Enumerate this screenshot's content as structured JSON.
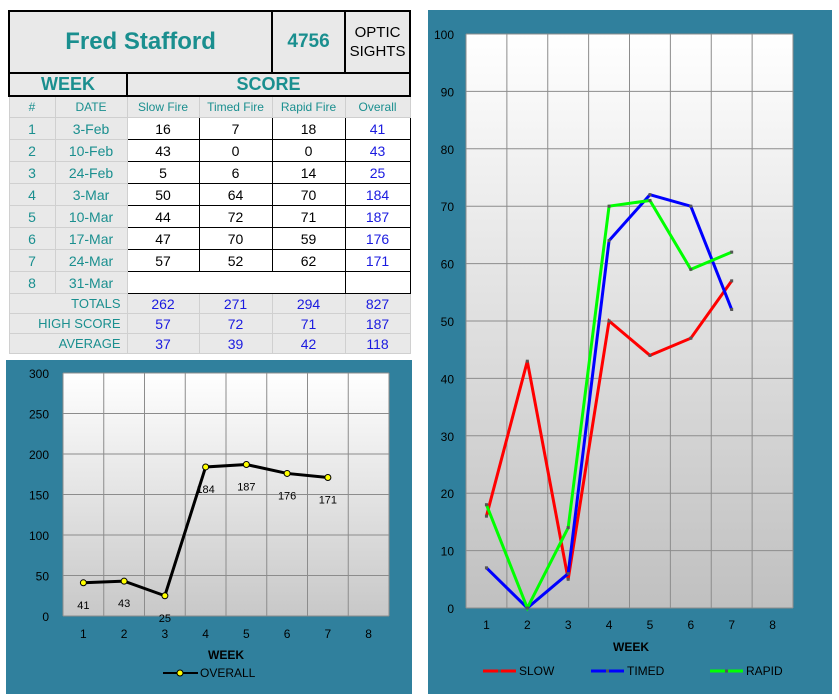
{
  "header": {
    "name": "Fred Stafford",
    "id": "4756",
    "category": "OPTIC\nSIGHTS"
  },
  "labels": {
    "week": "WEEK",
    "score": "SCORE",
    "num": "#",
    "date": "DATE",
    "slow": "Slow Fire",
    "timed": "Timed Fire",
    "rapid": "Rapid Fire",
    "overall": "Overall"
  },
  "rows": [
    {
      "num": "1",
      "date": "3-Feb",
      "slow": "16",
      "timed": "7",
      "rapid": "18",
      "overall": "41"
    },
    {
      "num": "2",
      "date": "10-Feb",
      "slow": "43",
      "timed": "0",
      "rapid": "0",
      "overall": "43"
    },
    {
      "num": "3",
      "date": "24-Feb",
      "slow": "5",
      "timed": "6",
      "rapid": "14",
      "overall": "25"
    },
    {
      "num": "4",
      "date": "3-Mar",
      "slow": "50",
      "timed": "64",
      "rapid": "70",
      "overall": "184"
    },
    {
      "num": "5",
      "date": "10-Mar",
      "slow": "44",
      "timed": "72",
      "rapid": "71",
      "overall": "187"
    },
    {
      "num": "6",
      "date": "17-Mar",
      "slow": "47",
      "timed": "70",
      "rapid": "59",
      "overall": "176"
    },
    {
      "num": "7",
      "date": "24-Mar",
      "slow": "57",
      "timed": "52",
      "rapid": "62",
      "overall": "171"
    },
    {
      "num": "8",
      "date": "31-Mar",
      "slow": "",
      "timed": "",
      "rapid": "",
      "overall": ""
    }
  ],
  "totals": {
    "totals": {
      "label": "TOTALS",
      "slow": "262",
      "timed": "271",
      "rapid": "294",
      "overall": "827"
    },
    "high": {
      "label": "HIGH SCORE",
      "slow": "57",
      "timed": "72",
      "rapid": "71",
      "overall": "187"
    },
    "avg": {
      "label": "AVERAGE",
      "slow": "37",
      "timed": "39",
      "rapid": "42",
      "overall": "118"
    }
  },
  "colors": {
    "panel": "#30809d",
    "accent": "#1a8f8f",
    "overall_value": "#1a1ae0",
    "slow": "#ff0000",
    "timed": "#0000ff",
    "rapid": "#00ff00",
    "overall_line": "#000000",
    "overall_marker": "#ffff00"
  },
  "chart_data": [
    {
      "type": "line",
      "x": [
        1,
        2,
        3,
        4,
        5,
        6,
        7
      ],
      "x_ticks": [
        1,
        2,
        3,
        4,
        5,
        6,
        7,
        8
      ],
      "series": [
        {
          "name": "OVERALL",
          "values": [
            41,
            43,
            25,
            184,
            187,
            176,
            171
          ]
        }
      ],
      "data_labels": [
        "41",
        "43",
        "25",
        "184",
        "187",
        "176",
        "171"
      ],
      "xlabel": "WEEK",
      "ylabel": "",
      "xlim": [
        0.5,
        8.5
      ],
      "ylim": [
        0,
        300
      ],
      "y_ticks": [
        0,
        50,
        100,
        150,
        200,
        250,
        300
      ],
      "grid": true,
      "legend": "bottom"
    },
    {
      "type": "line",
      "x": [
        1,
        2,
        3,
        4,
        5,
        6,
        7
      ],
      "x_ticks": [
        1,
        2,
        3,
        4,
        5,
        6,
        7,
        8
      ],
      "series": [
        {
          "name": "SLOW",
          "values": [
            16,
            43,
            5,
            50,
            44,
            47,
            57
          ]
        },
        {
          "name": "TIMED",
          "values": [
            7,
            0,
            6,
            64,
            72,
            70,
            52
          ]
        },
        {
          "name": "RAPID",
          "values": [
            18,
            0,
            14,
            70,
            71,
            59,
            62
          ]
        }
      ],
      "xlabel": "WEEK",
      "ylabel": "",
      "xlim": [
        0.5,
        8.5
      ],
      "ylim": [
        0,
        100
      ],
      "y_ticks": [
        0,
        10,
        20,
        30,
        40,
        50,
        60,
        70,
        80,
        90,
        100
      ],
      "grid": true,
      "legend": "bottom"
    }
  ]
}
